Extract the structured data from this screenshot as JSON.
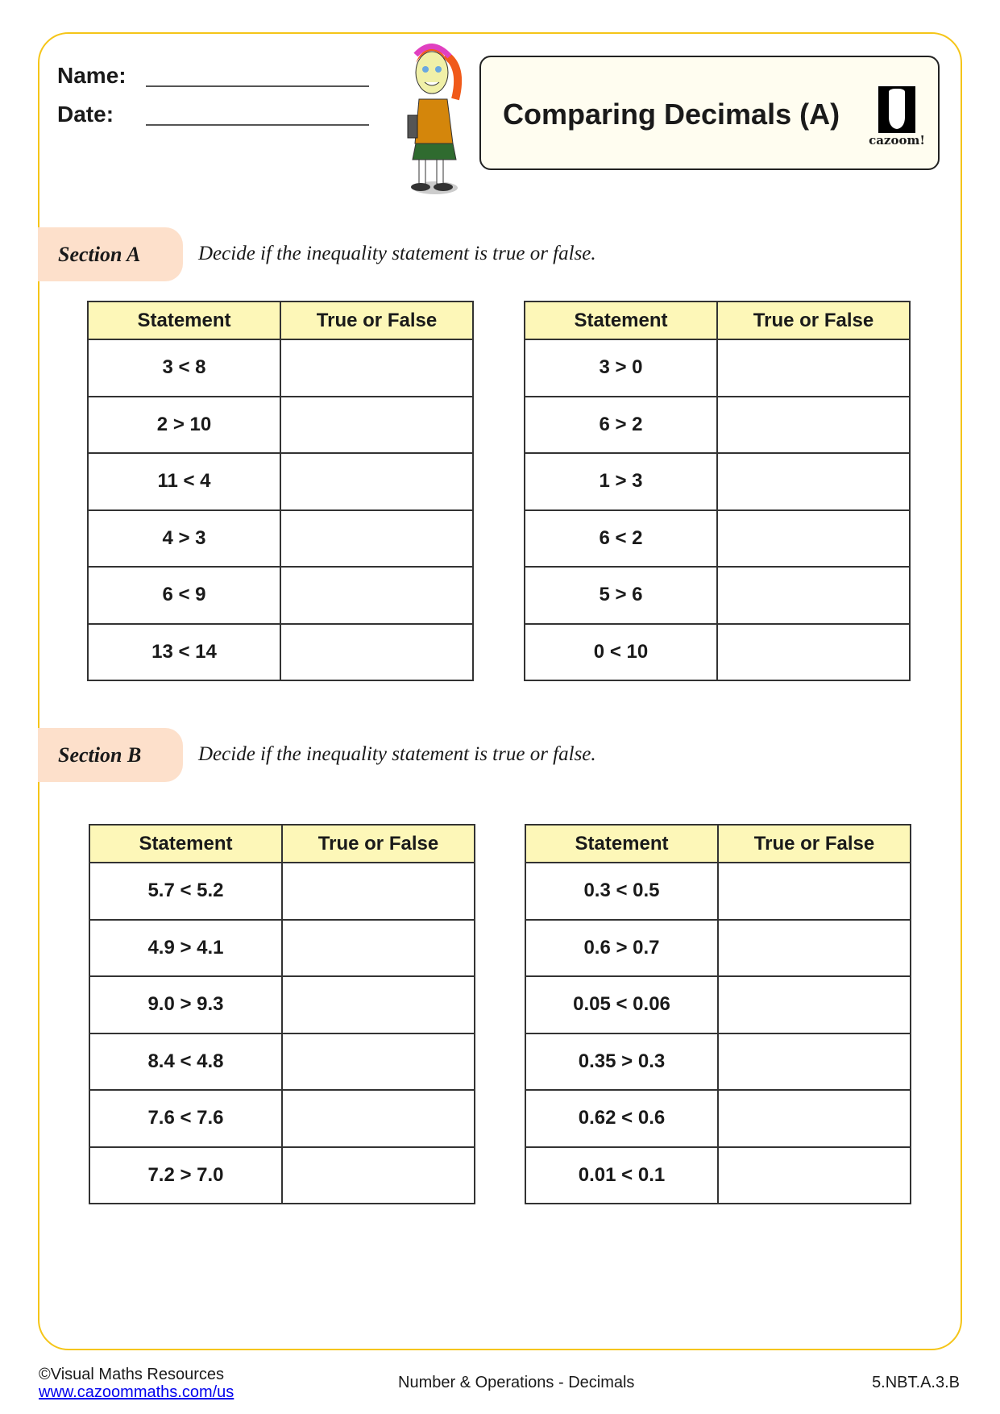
{
  "header": {
    "name_label": "Name:",
    "date_label": "Date:",
    "title": "Comparing Decimals (A)",
    "logo_text": "cazoom!"
  },
  "section_a": {
    "label": "Section A",
    "instruction": "Decide if the inequality statement is true or false.",
    "col1": "Statement",
    "col2": "True or False",
    "left": [
      "3 < 8",
      "2 > 10",
      "11 < 4",
      "4 > 3",
      "6 < 9",
      "13 < 14"
    ],
    "right": [
      "3 > 0",
      "6 > 2",
      "1 > 3",
      "6 < 2",
      "5 > 6",
      "0 < 10"
    ]
  },
  "section_b": {
    "label": "Section B",
    "instruction": "Decide if the inequality statement is true or false.",
    "col1": "Statement",
    "col2": "True or False",
    "left": [
      "5.7 < 5.2",
      "4.9 > 4.1",
      "9.0 > 9.3",
      "8.4 < 4.8",
      "7.6 < 7.6",
      "7.2 > 7.0"
    ],
    "right": [
      "0.3 < 0.5",
      "0.6 > 0.7",
      "0.05 < 0.06",
      "0.35 > 0.3",
      "0.62 < 0.6",
      "0.01 < 0.1"
    ]
  },
  "footer": {
    "copyright": "©Visual Maths Resources",
    "link": "www.cazoommaths.com/us",
    "topic": "Number & Operations - Decimals",
    "standard": "5.NBT.A.3.B"
  },
  "colors": {
    "border": "#f5c518",
    "header_fill": "#fdf7b8",
    "section_fill": "#fde0cb",
    "title_fill": "#fffdf0"
  }
}
